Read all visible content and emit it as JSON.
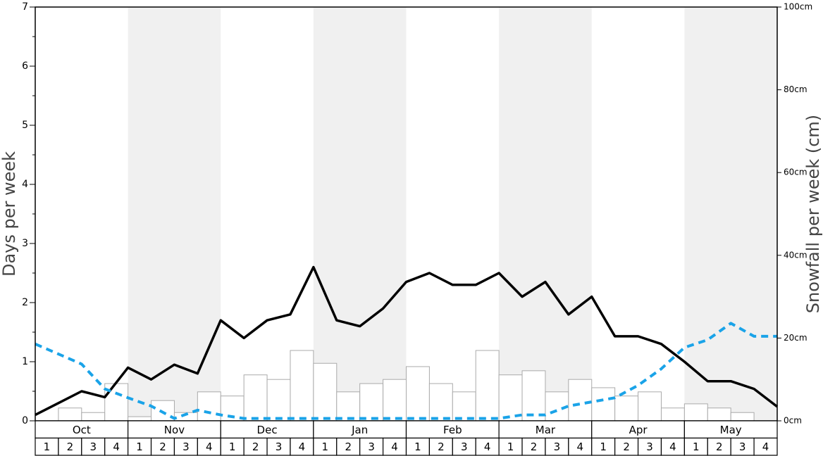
{
  "chart_data": {
    "type": "bar-line",
    "y_label": "Days per week",
    "y2_label": "Snowfall per week (cm)",
    "months": [
      "Oct",
      "Nov",
      "Dec",
      "Jan",
      "Feb",
      "Mar",
      "Apr",
      "May"
    ],
    "weeks": [
      "1",
      "2",
      "3",
      "4"
    ],
    "ylim": [
      0,
      7
    ],
    "yticks": [
      0,
      1,
      2,
      3,
      4,
      5,
      6,
      7
    ],
    "yminorticks": [
      0.5,
      1.5,
      2.5,
      3.5,
      4.5,
      5.5,
      6.5
    ],
    "y2lim": [
      0,
      100
    ],
    "y2ticks": [
      {
        "value": 0,
        "label": "0cm"
      },
      {
        "value": 20,
        "label": "20cm"
      },
      {
        "value": 40,
        "label": "40cm"
      },
      {
        "value": 60,
        "label": "60cm"
      },
      {
        "value": 80,
        "label": "80cm"
      },
      {
        "value": 100,
        "label": "100cm"
      }
    ],
    "series": [
      {
        "type": "bar",
        "axis": "y2",
        "color": "#ffffff",
        "stroke": "#aaaaaa",
        "values": [
          0,
          3.1,
          2.0,
          9.0,
          1.0,
          4.9,
          2.0,
          7.0,
          6.0,
          11.1,
          10.0,
          17.0,
          13.9,
          7.0,
          9.0,
          10.0,
          13.1,
          9.0,
          7.0,
          17.0,
          11.1,
          12.1,
          7.0,
          10.0,
          8.0,
          6.0,
          7.0,
          3.1,
          4.1,
          3.1,
          2.0,
          0
        ]
      },
      {
        "type": "line",
        "color": "#000000",
        "dash": false,
        "values": [
          0.1,
          0.3,
          0.5,
          0.4,
          0.9,
          0.7,
          0.95,
          0.8,
          1.7,
          1.4,
          1.7,
          1.8,
          2.6,
          1.7,
          1.6,
          1.9,
          2.35,
          2.5,
          2.3,
          2.3,
          2.5,
          2.1,
          2.35,
          1.8,
          2.1,
          1.43,
          1.43,
          1.3,
          1.0,
          0.67,
          0.67,
          0.54,
          0.24
        ]
      },
      {
        "type": "line",
        "color": "#1aa3e8",
        "dash": true,
        "values": [
          1.3,
          1.13,
          0.96,
          0.54,
          0.39,
          0.25,
          0.04,
          0.18,
          0.1,
          0.04,
          0.04,
          0.04,
          0.04,
          0.04,
          0.04,
          0.04,
          0.04,
          0.04,
          0.04,
          0.04,
          0.04,
          0.1,
          0.1,
          0.25,
          0.32,
          0.39,
          0.6,
          0.88,
          1.24,
          1.37,
          1.65,
          1.43,
          1.43
        ]
      }
    ]
  }
}
